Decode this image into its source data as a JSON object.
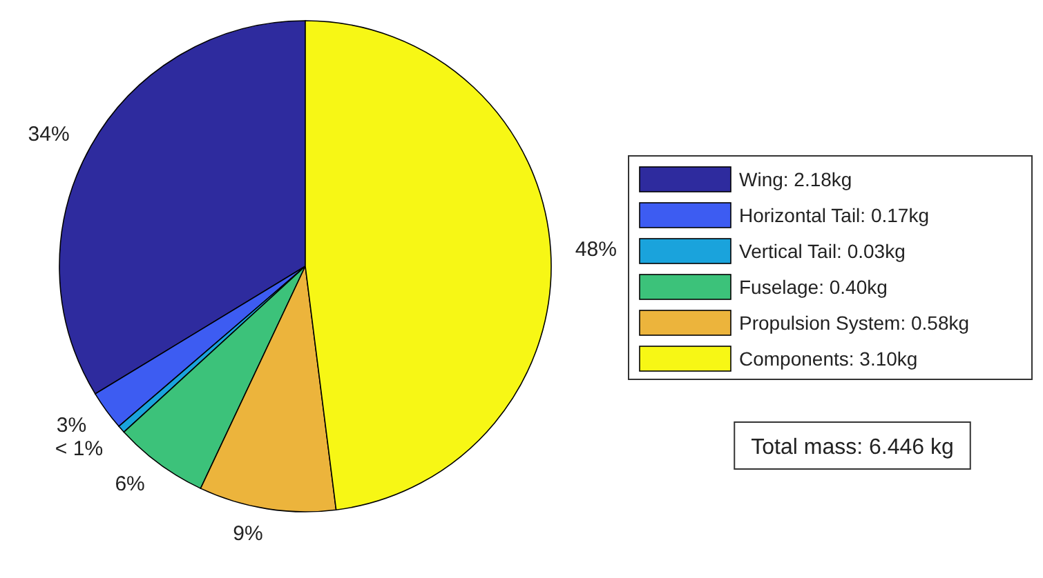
{
  "chart_data": {
    "type": "pie",
    "categories": [
      "Wing: 2.18kg",
      "Horizontal Tail: 0.17kg",
      "Vertical Tail: 0.03kg",
      "Fuselage: 0.40kg",
      "Propulsion System: 0.58kg",
      "Components: 3.10kg"
    ],
    "values": [
      33.7,
      2.6,
      0.5,
      6.2,
      9.0,
      48.0
    ],
    "value_labels": [
      "34%",
      "3%",
      "< 1%",
      "6%",
      "9%",
      "48%"
    ],
    "colors": [
      "#2e2b9e",
      "#3d5cf2",
      "#1aa3dc",
      "#3cc27a",
      "#ecb43c",
      "#f7f715"
    ],
    "legend": "right",
    "annotations": [
      "Total mass: 6.446 kg"
    ]
  }
}
